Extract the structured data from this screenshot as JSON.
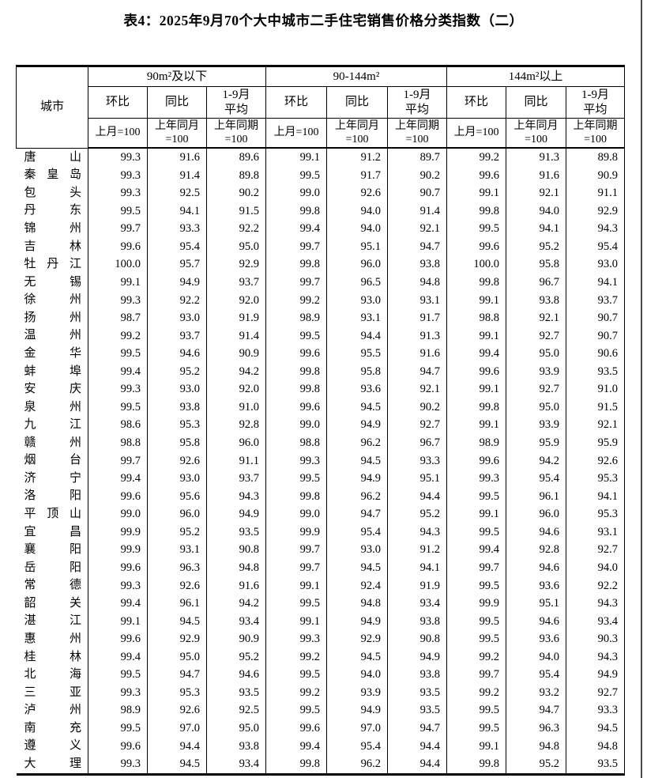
{
  "page": {
    "title": "表4：2025年9月70个大中城市二手住宅销售价格分类指数（二）"
  },
  "table": {
    "corner_header": "城市",
    "groups": [
      {
        "label": "90m²及以下"
      },
      {
        "label": "90-144m²"
      },
      {
        "label": "144m²以上"
      }
    ],
    "sub_headers": [
      "环比",
      "同比",
      "1-9月\n平均"
    ],
    "base_headers": [
      "上月=100",
      "上年同月\n=100",
      "上年同期\n=100"
    ],
    "rows": [
      {
        "city": "唐山",
        "values": [
          "99.3",
          "91.6",
          "89.6",
          "99.1",
          "91.2",
          "89.7",
          "99.2",
          "91.3",
          "89.8"
        ]
      },
      {
        "city": "秦皇岛",
        "values": [
          "99.3",
          "91.4",
          "89.8",
          "99.5",
          "91.7",
          "90.2",
          "99.6",
          "91.6",
          "90.9"
        ]
      },
      {
        "city": "包头",
        "values": [
          "99.3",
          "92.5",
          "90.2",
          "99.0",
          "92.6",
          "90.7",
          "99.1",
          "92.1",
          "91.1"
        ]
      },
      {
        "city": "丹东",
        "values": [
          "99.5",
          "94.1",
          "91.5",
          "99.8",
          "94.0",
          "91.4",
          "99.8",
          "94.0",
          "92.9"
        ]
      },
      {
        "city": "锦州",
        "values": [
          "99.7",
          "93.3",
          "92.2",
          "99.4",
          "94.0",
          "92.1",
          "99.5",
          "94.1",
          "94.3"
        ]
      },
      {
        "city": "吉林",
        "values": [
          "99.6",
          "95.4",
          "95.0",
          "99.7",
          "95.1",
          "94.7",
          "99.6",
          "95.2",
          "95.4"
        ]
      },
      {
        "city": "牡丹江",
        "values": [
          "100.0",
          "95.7",
          "92.9",
          "99.8",
          "96.0",
          "93.8",
          "100.0",
          "95.8",
          "93.0"
        ]
      },
      {
        "city": "无锡",
        "values": [
          "99.1",
          "94.9",
          "93.7",
          "99.7",
          "96.5",
          "94.8",
          "99.8",
          "96.7",
          "94.1"
        ]
      },
      {
        "city": "徐州",
        "values": [
          "99.3",
          "92.2",
          "92.0",
          "99.2",
          "93.0",
          "93.1",
          "99.1",
          "93.8",
          "93.7"
        ]
      },
      {
        "city": "扬州",
        "values": [
          "98.7",
          "93.0",
          "91.9",
          "98.9",
          "93.1",
          "91.7",
          "98.8",
          "92.1",
          "90.7"
        ]
      },
      {
        "city": "温州",
        "values": [
          "99.2",
          "93.7",
          "91.4",
          "99.5",
          "94.4",
          "91.3",
          "99.1",
          "92.7",
          "90.7"
        ]
      },
      {
        "city": "金华",
        "values": [
          "99.5",
          "94.6",
          "90.9",
          "99.6",
          "95.5",
          "91.6",
          "99.4",
          "95.0",
          "90.6"
        ]
      },
      {
        "city": "蚌埠",
        "values": [
          "99.4",
          "95.2",
          "94.2",
          "99.8",
          "95.8",
          "94.7",
          "99.6",
          "93.9",
          "93.5"
        ]
      },
      {
        "city": "安庆",
        "values": [
          "99.3",
          "93.0",
          "92.0",
          "99.8",
          "93.6",
          "92.1",
          "99.1",
          "92.7",
          "91.0"
        ]
      },
      {
        "city": "泉州",
        "values": [
          "99.5",
          "93.8",
          "91.0",
          "99.6",
          "94.5",
          "90.2",
          "99.8",
          "95.0",
          "91.5"
        ]
      },
      {
        "city": "九江",
        "values": [
          "98.6",
          "95.3",
          "92.8",
          "99.0",
          "94.9",
          "92.7",
          "99.1",
          "93.9",
          "92.1"
        ]
      },
      {
        "city": "赣州",
        "values": [
          "98.8",
          "95.8",
          "96.0",
          "98.8",
          "96.2",
          "96.7",
          "98.9",
          "95.9",
          "95.9"
        ]
      },
      {
        "city": "烟台",
        "values": [
          "99.7",
          "92.6",
          "91.1",
          "99.3",
          "94.5",
          "93.3",
          "99.6",
          "94.2",
          "92.6"
        ]
      },
      {
        "city": "济宁",
        "values": [
          "99.4",
          "93.0",
          "93.7",
          "99.5",
          "94.9",
          "95.1",
          "99.3",
          "95.4",
          "95.3"
        ]
      },
      {
        "city": "洛阳",
        "values": [
          "99.6",
          "95.6",
          "94.3",
          "99.8",
          "96.2",
          "94.4",
          "99.5",
          "96.1",
          "94.1"
        ]
      },
      {
        "city": "平顶山",
        "values": [
          "99.0",
          "96.0",
          "94.9",
          "99.0",
          "94.7",
          "95.2",
          "99.1",
          "96.0",
          "95.3"
        ]
      },
      {
        "city": "宜昌",
        "values": [
          "99.9",
          "95.2",
          "93.5",
          "99.9",
          "95.4",
          "94.3",
          "99.5",
          "94.6",
          "93.1"
        ]
      },
      {
        "city": "襄阳",
        "values": [
          "99.9",
          "93.1",
          "90.8",
          "99.7",
          "93.0",
          "91.2",
          "99.4",
          "92.8",
          "92.7"
        ]
      },
      {
        "city": "岳阳",
        "values": [
          "99.6",
          "96.3",
          "94.8",
          "99.7",
          "94.5",
          "94.1",
          "99.7",
          "94.6",
          "94.0"
        ]
      },
      {
        "city": "常德",
        "values": [
          "99.3",
          "92.6",
          "91.6",
          "99.1",
          "92.4",
          "91.9",
          "99.5",
          "93.6",
          "92.2"
        ]
      },
      {
        "city": "韶关",
        "values": [
          "99.4",
          "96.1",
          "94.2",
          "99.5",
          "94.8",
          "93.4",
          "99.9",
          "95.1",
          "94.3"
        ]
      },
      {
        "city": "湛江",
        "values": [
          "99.1",
          "94.5",
          "93.4",
          "99.1",
          "94.9",
          "93.8",
          "99.5",
          "94.6",
          "93.4"
        ]
      },
      {
        "city": "惠州",
        "values": [
          "99.6",
          "92.9",
          "90.9",
          "99.3",
          "92.9",
          "90.8",
          "99.5",
          "93.6",
          "90.3"
        ]
      },
      {
        "city": "桂林",
        "values": [
          "99.4",
          "95.0",
          "95.2",
          "99.2",
          "94.5",
          "94.9",
          "99.2",
          "94.0",
          "94.3"
        ]
      },
      {
        "city": "北海",
        "values": [
          "99.5",
          "94.7",
          "94.6",
          "99.5",
          "94.0",
          "93.8",
          "99.7",
          "95.4",
          "94.9"
        ]
      },
      {
        "city": "三亚",
        "values": [
          "99.3",
          "95.3",
          "93.5",
          "99.2",
          "93.9",
          "93.5",
          "99.2",
          "93.2",
          "92.7"
        ]
      },
      {
        "city": "泸州",
        "values": [
          "98.9",
          "92.6",
          "92.5",
          "99.5",
          "94.9",
          "93.5",
          "99.5",
          "94.7",
          "93.3"
        ]
      },
      {
        "city": "南充",
        "values": [
          "99.5",
          "97.0",
          "95.0",
          "99.6",
          "97.0",
          "94.7",
          "99.5",
          "96.3",
          "94.5"
        ]
      },
      {
        "city": "遵义",
        "values": [
          "99.6",
          "94.4",
          "93.8",
          "99.4",
          "95.4",
          "94.4",
          "99.1",
          "94.8",
          "94.8"
        ]
      },
      {
        "city": "大理",
        "values": [
          "99.3",
          "94.5",
          "93.4",
          "99.8",
          "96.2",
          "94.4",
          "99.8",
          "95.2",
          "93.5"
        ]
      }
    ]
  }
}
